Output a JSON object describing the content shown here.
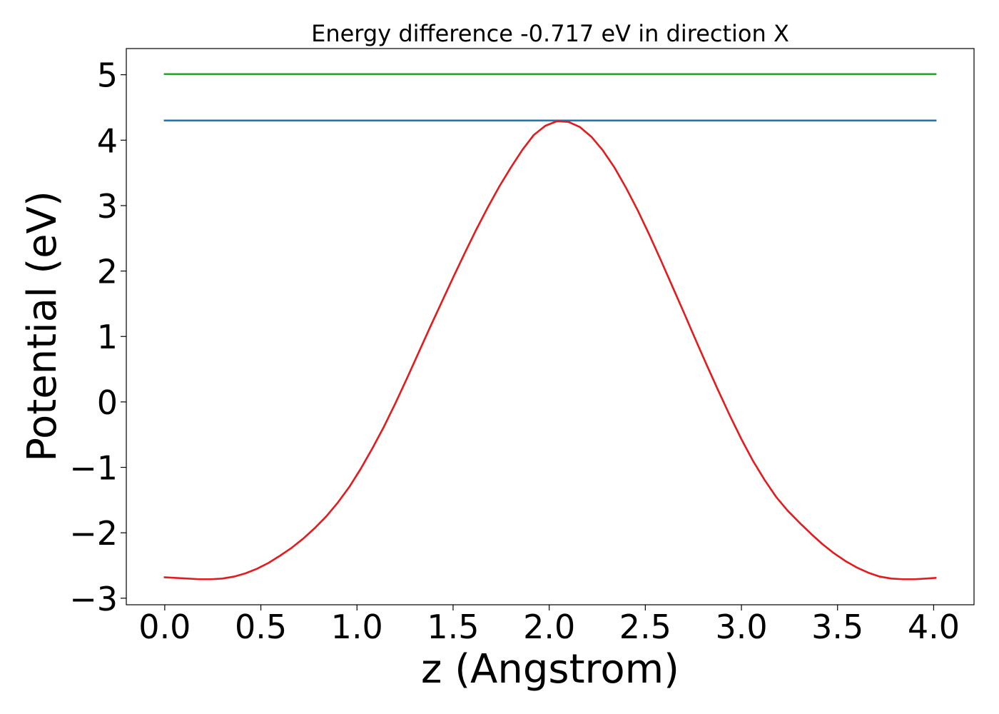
{
  "chart_data": {
    "type": "line",
    "title": "Energy difference -0.717 eV in direction X",
    "xlabel": "z (Angstrom)",
    "ylabel": "Potential (eV)",
    "xlim": [
      -0.2,
      4.21
    ],
    "ylim": [
      -3.1,
      5.4
    ],
    "xticks": [
      0.0,
      0.5,
      1.0,
      1.5,
      2.0,
      2.5,
      3.0,
      3.5,
      4.0
    ],
    "xtick_labels": [
      "0.0",
      "0.5",
      "1.0",
      "1.5",
      "2.0",
      "2.5",
      "3.0",
      "3.5",
      "4.0"
    ],
    "yticks": [
      -3,
      -2,
      -1,
      0,
      1,
      2,
      3,
      4,
      5
    ],
    "ytick_labels": [
      "−3",
      "−2",
      "−1",
      "0",
      "1",
      "2",
      "3",
      "4",
      "5"
    ],
    "grid": false,
    "series": [
      {
        "color": "#2ca02c",
        "x": [
          0.0,
          4.01
        ],
        "y": [
          5.01,
          5.01
        ]
      },
      {
        "color": "#1f77b4",
        "x": [
          0.0,
          4.01
        ],
        "y": [
          4.3,
          4.3
        ]
      },
      {
        "color": "#e41a1c",
        "x": [
          0.0,
          0.06,
          0.12,
          0.18,
          0.24,
          0.3,
          0.36,
          0.42,
          0.48,
          0.54,
          0.6,
          0.66,
          0.72,
          0.78,
          0.84,
          0.9,
          0.96,
          1.02,
          1.08,
          1.14,
          1.2,
          1.26,
          1.32,
          1.38,
          1.44,
          1.5,
          1.56,
          1.62,
          1.68,
          1.74,
          1.8,
          1.86,
          1.92,
          1.98,
          2.04,
          2.1,
          2.16,
          2.22,
          2.28,
          2.34,
          2.4,
          2.46,
          2.52,
          2.58,
          2.64,
          2.7,
          2.76,
          2.82,
          2.88,
          2.94,
          3.0,
          3.06,
          3.12,
          3.18,
          3.24,
          3.3,
          3.36,
          3.42,
          3.48,
          3.54,
          3.6,
          3.66,
          3.72,
          3.78,
          3.84,
          3.9,
          3.96,
          4.01
        ],
        "y": [
          -2.68,
          -2.69,
          -2.7,
          -2.71,
          -2.71,
          -2.7,
          -2.67,
          -2.62,
          -2.55,
          -2.46,
          -2.35,
          -2.23,
          -2.09,
          -1.93,
          -1.75,
          -1.54,
          -1.3,
          -1.02,
          -0.71,
          -0.38,
          -0.02,
          0.36,
          0.75,
          1.14,
          1.52,
          1.9,
          2.27,
          2.63,
          2.97,
          3.29,
          3.58,
          3.85,
          4.08,
          4.22,
          4.29,
          4.28,
          4.2,
          4.05,
          3.84,
          3.58,
          3.27,
          2.93,
          2.56,
          2.17,
          1.77,
          1.37,
          0.96,
          0.56,
          0.17,
          -0.21,
          -0.57,
          -0.9,
          -1.19,
          -1.45,
          -1.66,
          -1.84,
          -2.01,
          -2.17,
          -2.31,
          -2.43,
          -2.53,
          -2.61,
          -2.67,
          -2.7,
          -2.71,
          -2.71,
          -2.7,
          -2.69
        ]
      }
    ]
  }
}
